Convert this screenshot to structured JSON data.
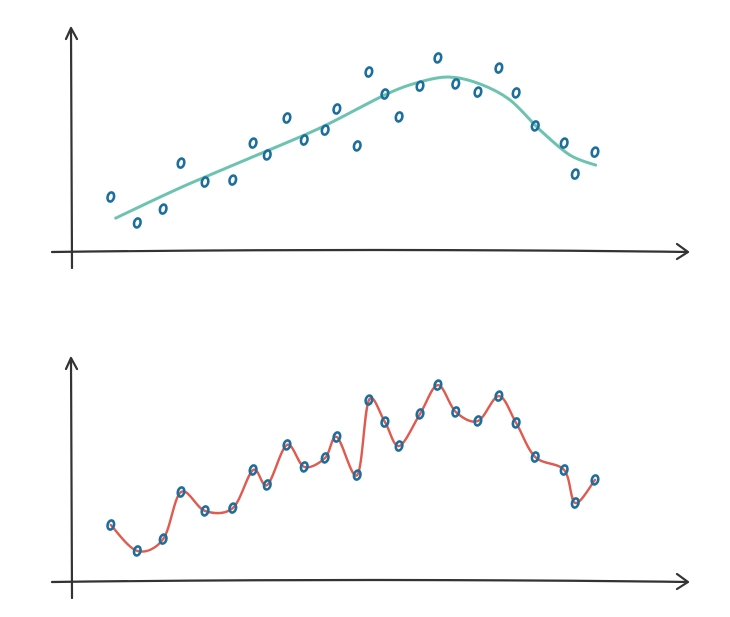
{
  "chart_data": [
    {
      "type": "scatter",
      "x": [
        6.3,
        10.6,
        14.8,
        17.7,
        21.6,
        26.1,
        29.4,
        31.7,
        34.9,
        37.7,
        41.1,
        43.0,
        46.3,
        48.2,
        50.8,
        53.1,
        56.5,
        59.4,
        62.3,
        65.9,
        69.3,
        72.1,
        75.2,
        79.9,
        81.7,
        84.9
      ],
      "values": [
        24.1,
        12.3,
        18.6,
        39.5,
        30.9,
        31.8,
        48.6,
        43.2,
        60,
        50,
        54.5,
        64.1,
        47.3,
        80.9,
        70.9,
        60.5,
        74.5,
        87.3,
        75.5,
        71.8,
        82.7,
        71.4,
        56.4,
        48.6,
        34.5,
        44.5
      ],
      "color": "#1c6e9c",
      "fit": {
        "x": [
          7.1,
          17.5,
          28.9,
          40.3,
          50.8,
          56.5,
          61.4,
          66.2,
          71.1,
          76.0,
          80.8,
          85.0
        ],
        "values": [
          14.5,
          28.2,
          41.8,
          55.5,
          70.5,
          76.4,
          78.6,
          75.5,
          68.2,
          54.5,
          43.2,
          38.6
        ],
        "color": "#6cc3b0"
      },
      "xlim": [
        0,
        100
      ],
      "ylim": [
        0,
        100
      ]
    },
    {
      "type": "line",
      "x": [
        6.3,
        10.6,
        14.8,
        17.7,
        21.6,
        26.1,
        29.4,
        31.7,
        34.9,
        37.7,
        41.1,
        43.0,
        46.3,
        48.2,
        50.8,
        53.1,
        56.5,
        59.4,
        62.3,
        65.9,
        69.3,
        72.1,
        75.2,
        79.9,
        81.7,
        84.9
      ],
      "values": [
        25,
        13.2,
        18.6,
        40,
        31.4,
        32.7,
        50,
        43.2,
        61.4,
        51.4,
        55.5,
        65,
        47.7,
        81.8,
        71.8,
        60.9,
        75.5,
        88.6,
        76.4,
        72.3,
        83.6,
        71.4,
        55.9,
        50,
        35,
        45.5
      ],
      "color": "#e05a4f",
      "marker_color": "#1c6e9c",
      "xlim": [
        0,
        100
      ],
      "ylim": [
        0,
        100
      ]
    }
  ]
}
